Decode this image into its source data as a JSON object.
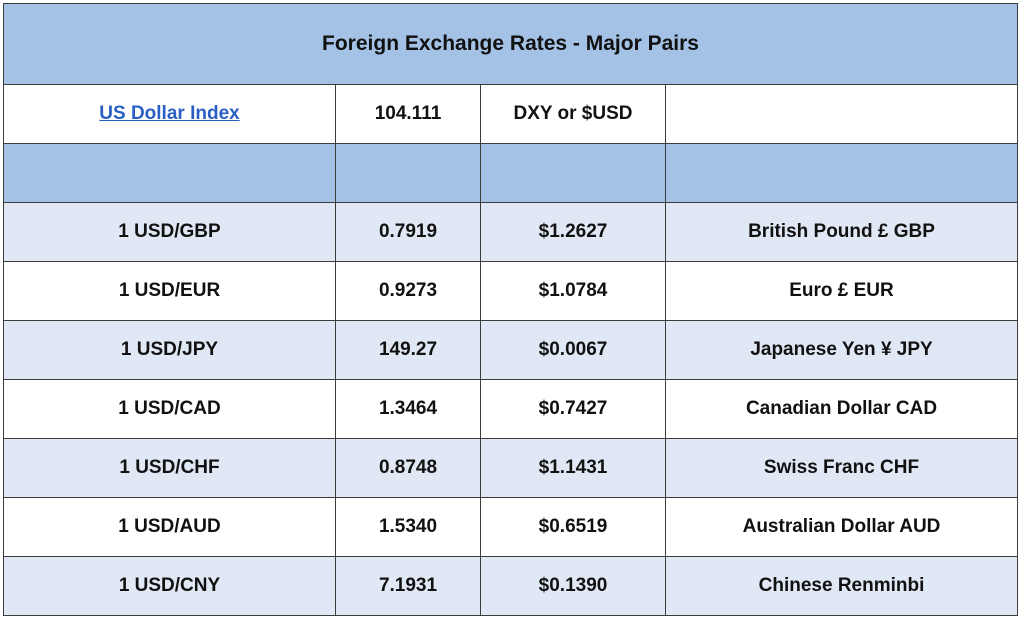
{
  "title": "Foreign Exchange Rates - Major Pairs",
  "index_row": {
    "name": "US Dollar Index",
    "value": "104.111",
    "symbol": "DXY or $USD",
    "note": ""
  },
  "spacer_row": [
    "",
    "",
    "",
    ""
  ],
  "pairs": [
    {
      "pair": "1 USD/GBP",
      "rate": "0.7919",
      "usd_value": "$1.2627",
      "currency": "British Pound £ GBP"
    },
    {
      "pair": "1 USD/EUR",
      "rate": "0.9273",
      "usd_value": "$1.0784",
      "currency": "Euro £ EUR"
    },
    {
      "pair": "1 USD/JPY",
      "rate": "149.27",
      "usd_value": "$0.0067",
      "currency": "Japanese Yen ¥ JPY"
    },
    {
      "pair": "1 USD/CAD",
      "rate": "1.3464",
      "usd_value": "$0.7427",
      "currency": "Canadian Dollar CAD"
    },
    {
      "pair": "1 USD/CHF",
      "rate": "0.8748",
      "usd_value": "$1.1431",
      "currency": "Swiss Franc CHF"
    },
    {
      "pair": "1 USD/AUD",
      "rate": "1.5340",
      "usd_value": "$0.6519",
      "currency": "Australian Dollar AUD"
    },
    {
      "pair": "1 USD/CNY",
      "rate": "7.1931",
      "usd_value": "$0.1390",
      "currency": "Chinese Renminbi"
    }
  ],
  "colors": {
    "header_blue": "#a4c2e5",
    "band_light": "#dfe8f4",
    "link_blue": "#2a5fc4",
    "border": "#3c3c3c"
  }
}
